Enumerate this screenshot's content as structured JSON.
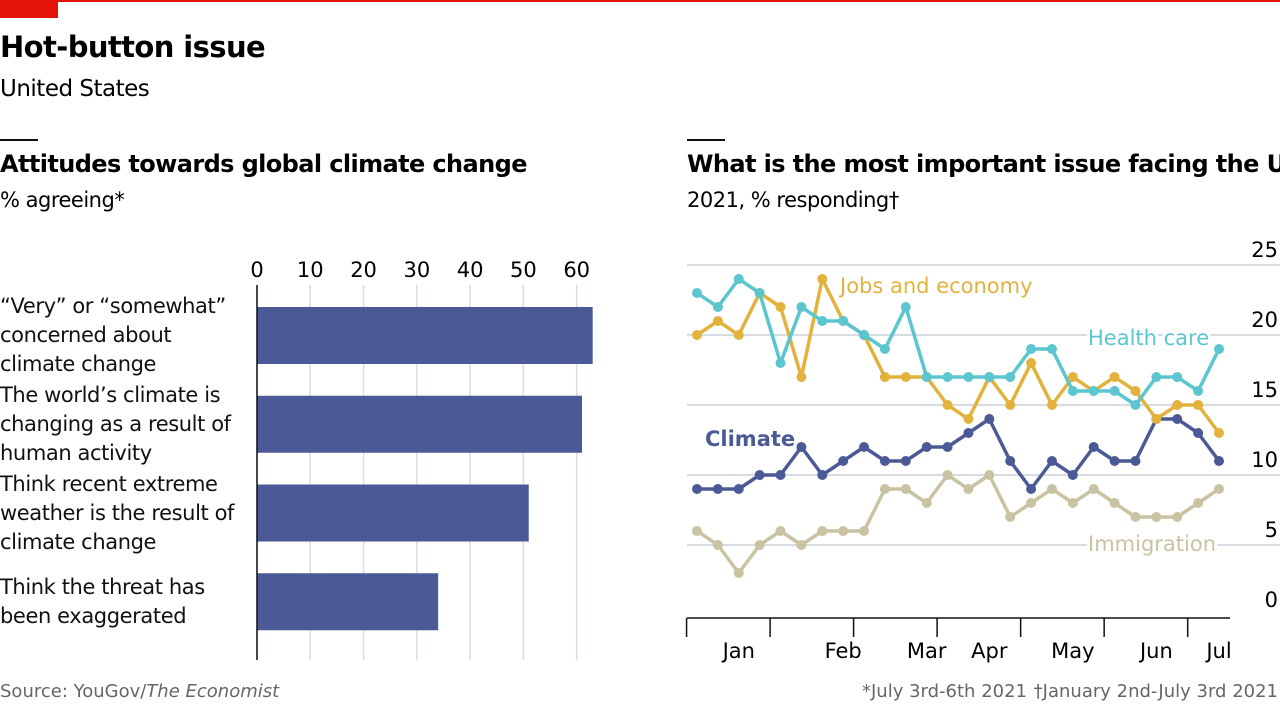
{
  "header": {
    "title": "Hot-button issue",
    "subtitle": "United States"
  },
  "chart_data": [
    {
      "type": "hbar",
      "title": "Attitudes towards global climate change",
      "subtitle": "% agreeing*",
      "categories": [
        "“Very” or “somewhat” concerned about climate change",
        "The world’s climate is changing as a result of human activity",
        "Think recent extreme weather is the result of climate change",
        "Think the threat has been exaggerated"
      ],
      "values": [
        63,
        61,
        51,
        34
      ],
      "color": "#4b5a96",
      "xlim": [
        0,
        64
      ],
      "xticks": [
        0,
        10,
        20,
        30,
        40,
        50,
        60
      ],
      "grid": true
    },
    {
      "type": "line",
      "title": "What is the most important issue facing the US",
      "subtitle": "2021, % responding†",
      "categories": [
        null,
        null,
        "Jan",
        null,
        null,
        null,
        null,
        "Feb",
        null,
        null,
        null,
        "Mar",
        null,
        null,
        "Apr",
        null,
        null,
        null,
        "May",
        null,
        null,
        null,
        "Jun",
        null,
        null,
        "Jul"
      ],
      "series": [
        {
          "name": "Immigration",
          "color": "#c9c3a3",
          "values": [
            6,
            5,
            3,
            5,
            6,
            5,
            6,
            6,
            6,
            9,
            9,
            8,
            10,
            9,
            10,
            7,
            8,
            9,
            8,
            9,
            8,
            7,
            7,
            7,
            8,
            9
          ]
        },
        {
          "name": "Climate",
          "color": "#4b5a96",
          "values": [
            9,
            9,
            9,
            10,
            10,
            12,
            10,
            11,
            12,
            11,
            11,
            12,
            12,
            13,
            14,
            11,
            9,
            11,
            10,
            12,
            11,
            11,
            14,
            14,
            13,
            11
          ]
        },
        {
          "name": "Jobs and economy",
          "color": "#e3b23c",
          "values": [
            20,
            21,
            20,
            23,
            22,
            17,
            24,
            21,
            20,
            17,
            17,
            17,
            15,
            14,
            17,
            15,
            18,
            15,
            17,
            16,
            17,
            16,
            14,
            15,
            15,
            13
          ]
        },
        {
          "name": "Health care",
          "color": "#5bc5d0",
          "values": [
            23,
            22,
            24,
            23,
            18,
            22,
            21,
            21,
            20,
            19,
            22,
            17,
            17,
            17,
            17,
            17,
            19,
            19,
            16,
            16,
            16,
            15,
            17,
            17,
            16,
            19
          ]
        }
      ],
      "ylim": [
        0,
        25
      ],
      "yticks": [
        0,
        5,
        10,
        15,
        20,
        25
      ],
      "grid": true
    }
  ],
  "footer": {
    "source": "Source: YouGov/",
    "source_publication": "The Economist",
    "note": "*July 3rd-6th 2021",
    "note2": "†January 2nd-July 3rd 2021"
  }
}
